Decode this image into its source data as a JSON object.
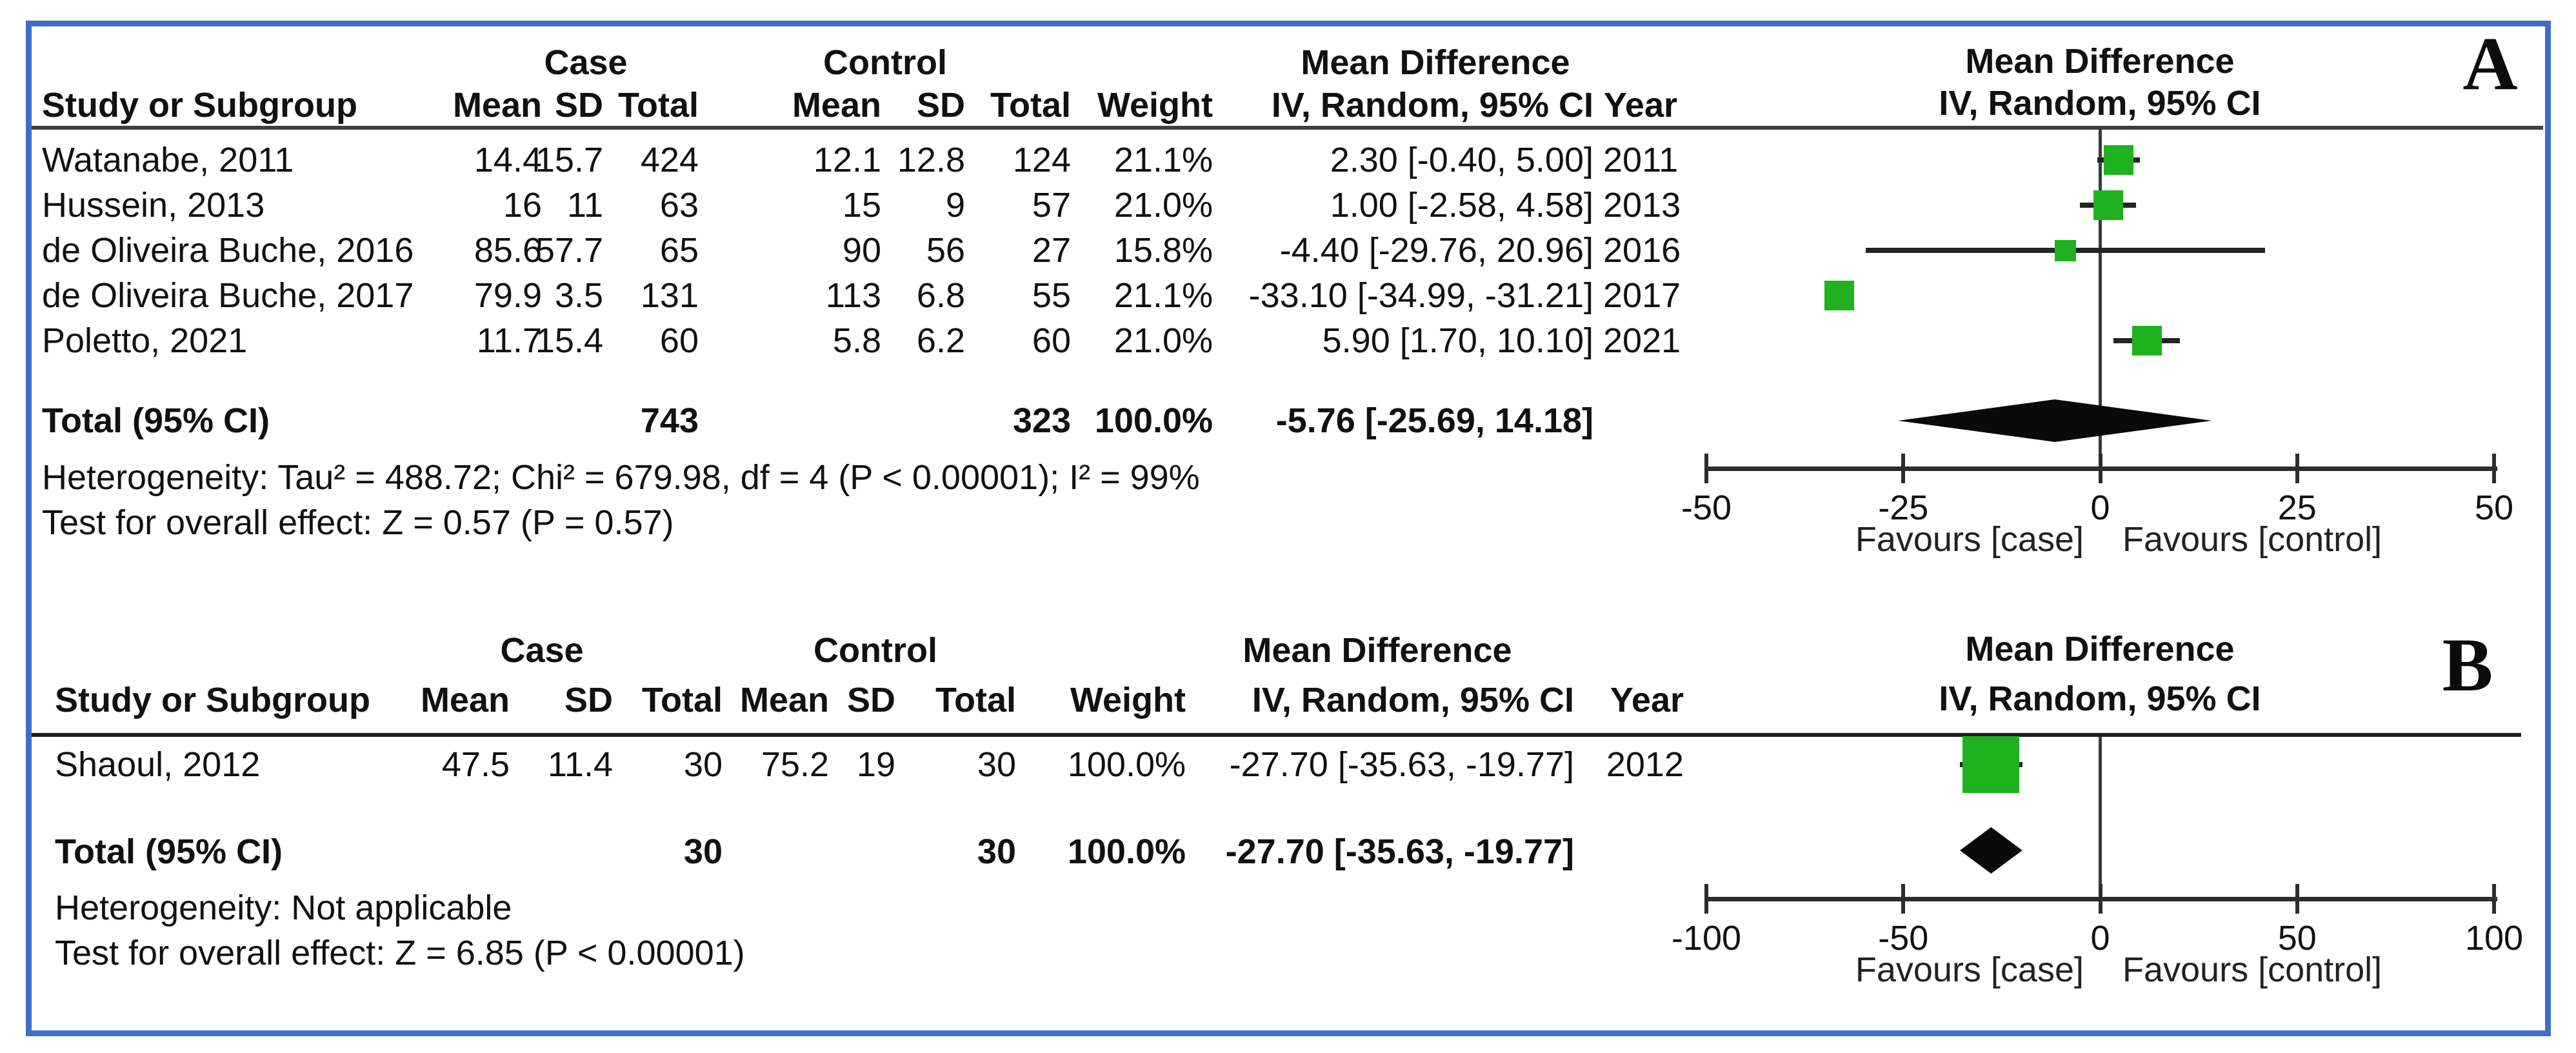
{
  "colors": {
    "border": "#3f6fc4",
    "marker_green": "#1fb11f",
    "diamond": "#0a0a0a",
    "rule_dark": "#1c1c1c",
    "rule_gray": "#3e3e3e"
  },
  "panels": [
    {
      "label": "A",
      "groups": {
        "case": "Case",
        "control": "Control",
        "mean_difference": "Mean Difference",
        "effect_model": "IV, Random, 95% CI"
      },
      "columns": {
        "study": "Study or Subgroup",
        "mean": "Mean",
        "sd": "SD",
        "total": "Total",
        "weight": "Weight",
        "ci": "IV, Random, 95% CI",
        "year": "Year"
      },
      "rows": [
        {
          "study": "Watanabe, 2011",
          "case_mean": "14.4",
          "case_sd": "15.7",
          "case_total": "424",
          "ctrl_mean": "12.1",
          "ctrl_sd": "12.8",
          "ctrl_total": "124",
          "weight": "21.1%",
          "ci": "2.30 [-0.40, 5.00]",
          "year": "2011"
        },
        {
          "study": "Hussein, 2013",
          "case_mean": "16",
          "case_sd": "11",
          "case_total": "63",
          "ctrl_mean": "15",
          "ctrl_sd": "9",
          "ctrl_total": "57",
          "weight": "21.0%",
          "ci": "1.00 [-2.58, 4.58]",
          "year": "2013"
        },
        {
          "study": "de Oliveira Buche, 2016",
          "case_mean": "85.6",
          "case_sd": "57.7",
          "case_total": "65",
          "ctrl_mean": "90",
          "ctrl_sd": "56",
          "ctrl_total": "27",
          "weight": "15.8%",
          "ci": "-4.40 [-29.76, 20.96]",
          "year": "2016"
        },
        {
          "study": "de Oliveira Buche, 2017",
          "case_mean": "79.9",
          "case_sd": "3.5",
          "case_total": "131",
          "ctrl_mean": "113",
          "ctrl_sd": "6.8",
          "ctrl_total": "55",
          "weight": "21.1%",
          "ci": "-33.10 [-34.99, -31.21]",
          "year": "2017"
        },
        {
          "study": "Poletto, 2021",
          "case_mean": "11.7",
          "case_sd": "15.4",
          "case_total": "60",
          "ctrl_mean": "5.8",
          "ctrl_sd": "6.2",
          "ctrl_total": "60",
          "weight": "21.0%",
          "ci": "5.90 [1.70, 10.10]",
          "year": "2021"
        }
      ],
      "total": {
        "label": "Total (95% CI)",
        "case_total": "743",
        "ctrl_total": "323",
        "weight": "100.0%",
        "ci": "-5.76 [-25.69, 14.18]"
      },
      "heterogeneity": "Heterogeneity: Tau² = 488.72; Chi² = 679.98, df = 4 (P < 0.00001); I² = 99%",
      "overall_effect": "Test for overall effect: Z = 0.57 (P = 0.57)",
      "favours_left": "Favours [case]",
      "favours_right": "Favours [control]"
    },
    {
      "label": "B",
      "groups": {
        "case": "Case",
        "control": "Control",
        "mean_difference": "Mean Difference",
        "effect_model": "IV, Random, 95% CI"
      },
      "columns": {
        "study": "Study or Subgroup",
        "mean": "Mean",
        "sd": "SD",
        "total": "Total",
        "weight": "Weight",
        "ci": "IV, Random, 95% CI",
        "year": "Year"
      },
      "rows": [
        {
          "study": "Shaoul, 2012",
          "case_mean": "47.5",
          "case_sd": "11.4",
          "case_total": "30",
          "ctrl_mean": "75.2",
          "ctrl_sd": "19",
          "ctrl_total": "30",
          "weight": "100.0%",
          "ci": "-27.70 [-35.63, -19.77]",
          "year": "2012"
        }
      ],
      "total": {
        "label": "Total (95% CI)",
        "case_total": "30",
        "ctrl_total": "30",
        "weight": "100.0%",
        "ci": "-27.70 [-35.63, -19.77]"
      },
      "heterogeneity": "Heterogeneity: Not applicable",
      "overall_effect": "Test for overall effect: Z = 6.85 (P < 0.00001)",
      "favours_left": "Favours [case]",
      "favours_right": "Favours [control]"
    }
  ],
  "chart_data": [
    {
      "type": "forest",
      "panel": "A",
      "title": "Mean Difference, IV, Random, 95% CI",
      "x_axis": {
        "min": -50,
        "max": 50,
        "ticks": [
          -50,
          -25,
          0,
          25,
          50
        ]
      },
      "studies": [
        {
          "name": "Watanabe, 2011",
          "est": 2.3,
          "lo": -0.4,
          "hi": 5.0,
          "weight_pct": 21.1
        },
        {
          "name": "Hussein, 2013",
          "est": 1.0,
          "lo": -2.58,
          "hi": 4.58,
          "weight_pct": 21.0
        },
        {
          "name": "de Oliveira Buche, 2016",
          "est": -4.4,
          "lo": -29.76,
          "hi": 20.96,
          "weight_pct": 15.8
        },
        {
          "name": "de Oliveira Buche, 2017",
          "est": -33.1,
          "lo": -34.99,
          "hi": -31.21,
          "weight_pct": 21.1
        },
        {
          "name": "Poletto, 2021",
          "est": 5.9,
          "lo": 1.7,
          "hi": 10.1,
          "weight_pct": 21.0
        }
      ],
      "total": {
        "est": -5.76,
        "lo": -25.69,
        "hi": 14.18
      }
    },
    {
      "type": "forest",
      "panel": "B",
      "title": "Mean Difference, IV, Random, 95% CI",
      "x_axis": {
        "min": -100,
        "max": 100,
        "ticks": [
          -100,
          -50,
          0,
          50,
          100
        ]
      },
      "studies": [
        {
          "name": "Shaoul, 2012",
          "est": -27.7,
          "lo": -35.63,
          "hi": -19.77,
          "weight_pct": 100.0
        }
      ],
      "total": {
        "est": -27.7,
        "lo": -35.63,
        "hi": -19.77
      }
    }
  ]
}
